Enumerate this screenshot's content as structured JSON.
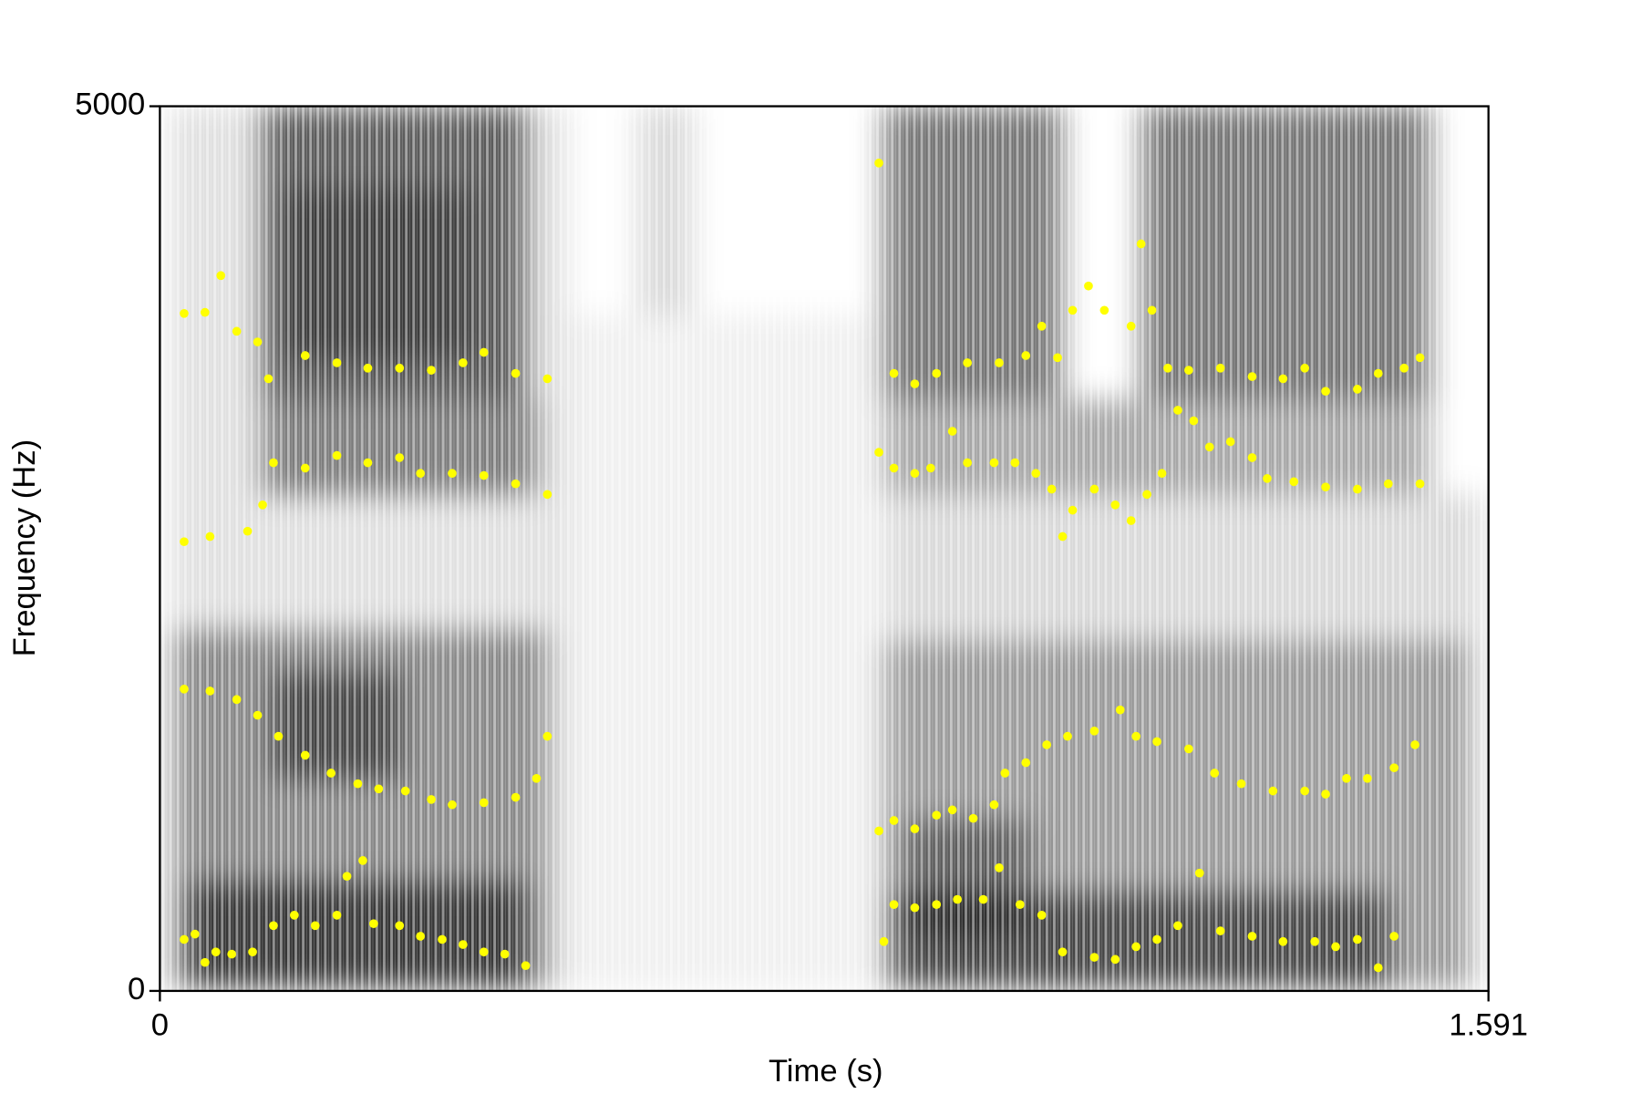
{
  "chart_data": {
    "type": "scatter",
    "xlabel": "Time (s)",
    "ylabel": "Frequency (Hz)",
    "xlim": [
      0,
      1.591
    ],
    "ylim": [
      0,
      5000
    ],
    "xticks": [
      0,
      1.591
    ],
    "yticks": [
      0,
      5000
    ],
    "series": [
      {
        "color": "#ffff00",
        "x": [
          0.029,
          0.042,
          0.054,
          0.067,
          0.086,
          0.111,
          0.136,
          0.161,
          0.186,
          0.212,
          0.224,
          0.243,
          0.256,
          0.287,
          0.312,
          0.338,
          0.363,
          0.388,
          0.413,
          0.438,
          0.867,
          0.879,
          0.904,
          0.93,
          0.955,
          0.986,
          1.005,
          1.03,
          1.056,
          1.081,
          1.119,
          1.144,
          1.169,
          1.194,
          1.219,
          1.245,
          1.27,
          1.308,
          1.345,
          1.383,
          1.408,
          1.434,
          1.459,
          1.478
        ],
        "values": [
          291,
          321,
          161,
          220,
          208,
          220,
          369,
          428,
          369,
          428,
          648,
          737,
          380,
          369,
          309,
          291,
          262,
          220,
          208,
          143,
          279,
          488,
          470,
          488,
          517,
          517,
          696,
          488,
          428,
          220,
          190,
          178,
          250,
          291,
          369,
          666,
          339,
          309,
          279,
          279,
          250,
          291,
          131,
          309
        ]
      },
      {
        "color": "#ffff00",
        "x": [
          0.029,
          0.06,
          0.092,
          0.117,
          0.142,
          0.174,
          0.205,
          0.237,
          0.262,
          0.294,
          0.325,
          0.35,
          0.388,
          0.426,
          0.451,
          0.464,
          0.861,
          0.879,
          0.904,
          0.93,
          0.949,
          0.974,
          0.999,
          1.012,
          1.037,
          1.062,
          1.087,
          1.119,
          1.15,
          1.169,
          1.194,
          1.232,
          1.263,
          1.295,
          1.333,
          1.371,
          1.396,
          1.421,
          1.446,
          1.478,
          1.503
        ],
        "values": [
          1706,
          1695,
          1647,
          1558,
          1439,
          1332,
          1231,
          1171,
          1142,
          1130,
          1082,
          1052,
          1064,
          1094,
          1201,
          1439,
          904,
          963,
          916,
          993,
          1023,
          975,
          1052,
          1231,
          1290,
          1391,
          1439,
          1469,
          1588,
          1439,
          1409,
          1368,
          1231,
          1171,
          1130,
          1130,
          1112,
          1201,
          1201,
          1261,
          1391
        ]
      },
      {
        "color": "#ffff00",
        "x": [
          0.029,
          0.06,
          0.105,
          0.123,
          0.136,
          0.174,
          0.212,
          0.249,
          0.287,
          0.312,
          0.35,
          0.388,
          0.426,
          0.464,
          0.861,
          0.879,
          0.904,
          0.923,
          0.949,
          0.967,
          0.999,
          1.024,
          1.049,
          1.068,
          1.081,
          1.093,
          1.119,
          1.144,
          1.163,
          1.182,
          1.2,
          1.219,
          1.238,
          1.257,
          1.282,
          1.308,
          1.326,
          1.358,
          1.396,
          1.434,
          1.471,
          1.509
        ],
        "values": [
          2539,
          2568,
          2598,
          2747,
          2985,
          2955,
          3026,
          2985,
          3014,
          2925,
          2925,
          2913,
          2866,
          2806,
          3044,
          2955,
          2925,
          2955,
          3163,
          2985,
          2985,
          2985,
          2925,
          2836,
          2568,
          2717,
          2836,
          2747,
          2658,
          2806,
          2925,
          3282,
          3222,
          3074,
          3104,
          3014,
          2896,
          2878,
          2848,
          2836,
          2866,
          2866
        ]
      },
      {
        "color": "#ffff00",
        "x": [
          0.029,
          0.054,
          0.073,
          0.092,
          0.117,
          0.13,
          0.174,
          0.212,
          0.249,
          0.287,
          0.325,
          0.363,
          0.388,
          0.426,
          0.464,
          0.861,
          0.879,
          0.904,
          0.93,
          0.967,
          1.005,
          1.037,
          1.056,
          1.075,
          1.093,
          1.112,
          1.131,
          1.163,
          1.175,
          1.188,
          1.207,
          1.232,
          1.27,
          1.308,
          1.345,
          1.371,
          1.396,
          1.434,
          1.459,
          1.49,
          1.509
        ],
        "values": [
          3829,
          3835,
          4043,
          3728,
          3668,
          3460,
          3591,
          3550,
          3520,
          3520,
          3508,
          3550,
          3609,
          3490,
          3460,
          4679,
          3490,
          3431,
          3490,
          3550,
          3550,
          3591,
          3757,
          3579,
          3847,
          3984,
          3847,
          3757,
          4222,
          3847,
          3520,
          3508,
          3520,
          3472,
          3460,
          3520,
          3389,
          3401,
          3490,
          3520,
          3579
        ]
      }
    ]
  }
}
